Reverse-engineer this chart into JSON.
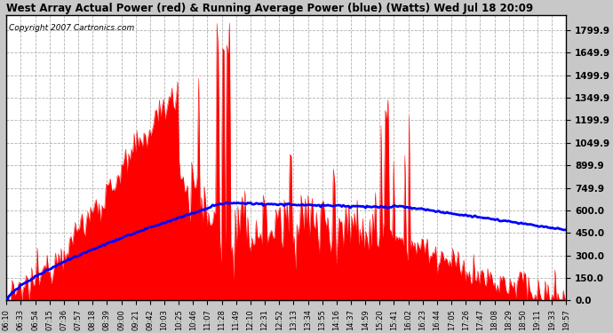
{
  "title": "West Array Actual Power (red) & Running Average Power (blue) (Watts) Wed Jul 18 20:09",
  "copyright": "Copyright 2007 Cartronics.com",
  "yticks": [
    0.0,
    150.0,
    300.0,
    450.0,
    600.0,
    749.9,
    899.9,
    1049.9,
    1199.9,
    1349.9,
    1499.9,
    1649.9,
    1799.9
  ],
  "ylim": [
    0,
    1900
  ],
  "bg_color": "#c8c8c8",
  "plot_bg_color": "#ffffff",
  "x_labels": [
    "06:10",
    "06:33",
    "06:54",
    "07:15",
    "07:36",
    "07:57",
    "08:18",
    "08:39",
    "09:00",
    "09:21",
    "09:42",
    "10:03",
    "10:25",
    "10:46",
    "11:07",
    "11:28",
    "11:49",
    "12:10",
    "12:31",
    "12:52",
    "13:13",
    "13:34",
    "13:55",
    "14:16",
    "14:37",
    "14:59",
    "15:20",
    "15:41",
    "16:02",
    "16:23",
    "16:44",
    "17:05",
    "17:26",
    "17:47",
    "18:08",
    "18:29",
    "18:50",
    "19:11",
    "19:33",
    "19:57"
  ]
}
